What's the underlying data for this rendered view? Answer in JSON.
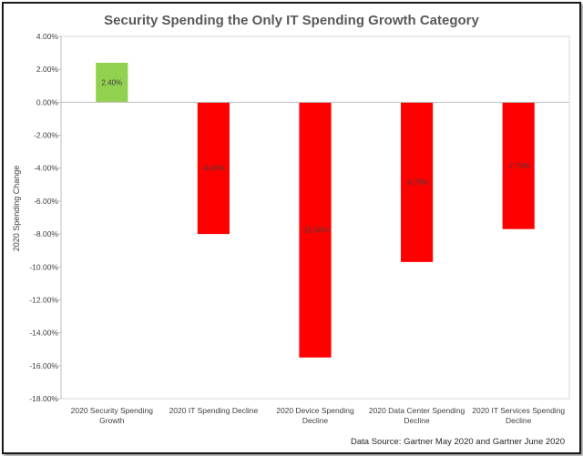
{
  "chart_data": {
    "type": "bar",
    "title": "Security Spending the Only IT Spending Growth Category",
    "ylabel": "2020 Spending Change",
    "xlabel": "",
    "categories": [
      [
        "2020 Security Spending",
        "Growth"
      ],
      [
        "2020 IT Spending Decline"
      ],
      [
        "2020 Device Spending",
        "Decline"
      ],
      [
        "2020 Data Center Spending",
        "Decline"
      ],
      [
        "2020 IT Services Spending",
        "Decline"
      ]
    ],
    "values": [
      2.4,
      -8.0,
      -15.5,
      -9.7,
      -7.7
    ],
    "data_labels": [
      "2.40%",
      "-8.00%",
      "-15.50%",
      "-9.70%",
      "-7.70%"
    ],
    "ylim": [
      -18,
      4
    ],
    "y_ticks": [
      "4.00%",
      "2.00%",
      "0.00%",
      "-2.00%",
      "-4.00%",
      "-6.00%",
      "-8.00%",
      "-10.00%",
      "-12.00%",
      "-14.00%",
      "-16.00%",
      "-18.00%"
    ],
    "grid": false,
    "legend": "none",
    "colors": {
      "positive": "#92d050",
      "negative": "#ff0000",
      "axis": "#bfbfbf",
      "text": "#404040",
      "title": "#595959"
    },
    "source_note": "Data Source:  Gartner  May 2020 and Gartner June 2020"
  }
}
